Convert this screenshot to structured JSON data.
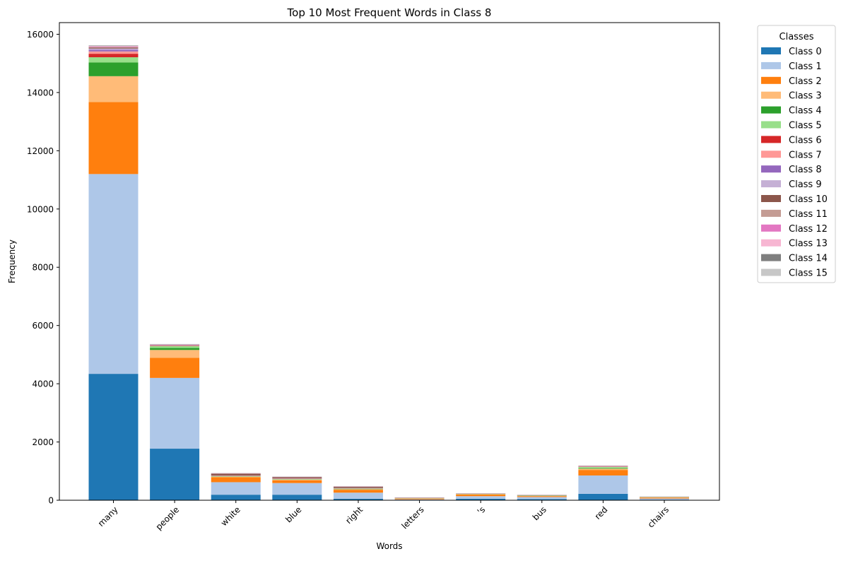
{
  "chart_data": {
    "type": "bar",
    "stacked": true,
    "title": "Top 10 Most Frequent Words in Class 8",
    "xlabel": "Words",
    "ylabel": "Frequency",
    "ylim": [
      0,
      16400
    ],
    "yticks": [
      0,
      2000,
      4000,
      6000,
      8000,
      10000,
      12000,
      14000,
      16000
    ],
    "grid": false,
    "legend_title": "Classes",
    "legend_position": "outside-right",
    "categories": [
      "many",
      "people",
      "white",
      "blue",
      "right",
      "letters",
      "'s",
      "bus",
      "red",
      "chairs"
    ],
    "series": [
      {
        "name": "Class 0",
        "color": "#1f77b4",
        "values": [
          4340,
          1770,
          190,
          190,
          50,
          10,
          50,
          40,
          220,
          20
        ]
      },
      {
        "name": "Class 1",
        "color": "#aec7e8",
        "values": [
          6860,
          2430,
          430,
          400,
          210,
          20,
          90,
          70,
          630,
          40
        ]
      },
      {
        "name": "Class 2",
        "color": "#ff7f0e",
        "values": [
          2470,
          690,
          170,
          90,
          100,
          20,
          60,
          30,
          190,
          30
        ]
      },
      {
        "name": "Class 3",
        "color": "#ffbb78",
        "values": [
          890,
          270,
          20,
          30,
          20,
          10,
          10,
          10,
          40,
          10
        ]
      },
      {
        "name": "Class 4",
        "color": "#2ca02c",
        "values": [
          470,
          70,
          10,
          10,
          10,
          5,
          5,
          10,
          20,
          5
        ]
      },
      {
        "name": "Class 5",
        "color": "#98df8a",
        "values": [
          180,
          60,
          10,
          10,
          10,
          5,
          5,
          5,
          40,
          5
        ]
      },
      {
        "name": "Class 6",
        "color": "#d62728",
        "values": [
          120,
          10,
          5,
          5,
          5,
          2,
          2,
          2,
          10,
          2
        ]
      },
      {
        "name": "Class 7",
        "color": "#ff9896",
        "values": [
          80,
          10,
          5,
          5,
          5,
          2,
          2,
          2,
          5,
          2
        ]
      },
      {
        "name": "Class 8",
        "color": "#9467bd",
        "values": [
          60,
          10,
          5,
          5,
          5,
          2,
          2,
          2,
          5,
          2
        ]
      },
      {
        "name": "Class 9",
        "color": "#c5b0d5",
        "values": [
          40,
          10,
          5,
          5,
          5,
          2,
          2,
          2,
          5,
          2
        ]
      },
      {
        "name": "Class 10",
        "color": "#8c564b",
        "values": [
          30,
          10,
          60,
          40,
          40,
          10,
          5,
          5,
          5,
          2
        ]
      },
      {
        "name": "Class 11",
        "color": "#c49c94",
        "values": [
          20,
          5,
          5,
          5,
          5,
          2,
          2,
          2,
          5,
          2
        ]
      },
      {
        "name": "Class 12",
        "color": "#e377c2",
        "values": [
          20,
          5,
          5,
          5,
          5,
          2,
          2,
          2,
          5,
          2
        ]
      },
      {
        "name": "Class 13",
        "color": "#f7b6d2",
        "values": [
          15,
          5,
          5,
          5,
          5,
          2,
          2,
          2,
          5,
          2
        ]
      },
      {
        "name": "Class 14",
        "color": "#7f7f7f",
        "values": [
          15,
          5,
          5,
          5,
          5,
          2,
          2,
          2,
          5,
          2
        ]
      },
      {
        "name": "Class 15",
        "color": "#c7c7c7",
        "values": [
          10,
          5,
          5,
          5,
          5,
          2,
          2,
          2,
          5,
          2
        ]
      }
    ]
  }
}
